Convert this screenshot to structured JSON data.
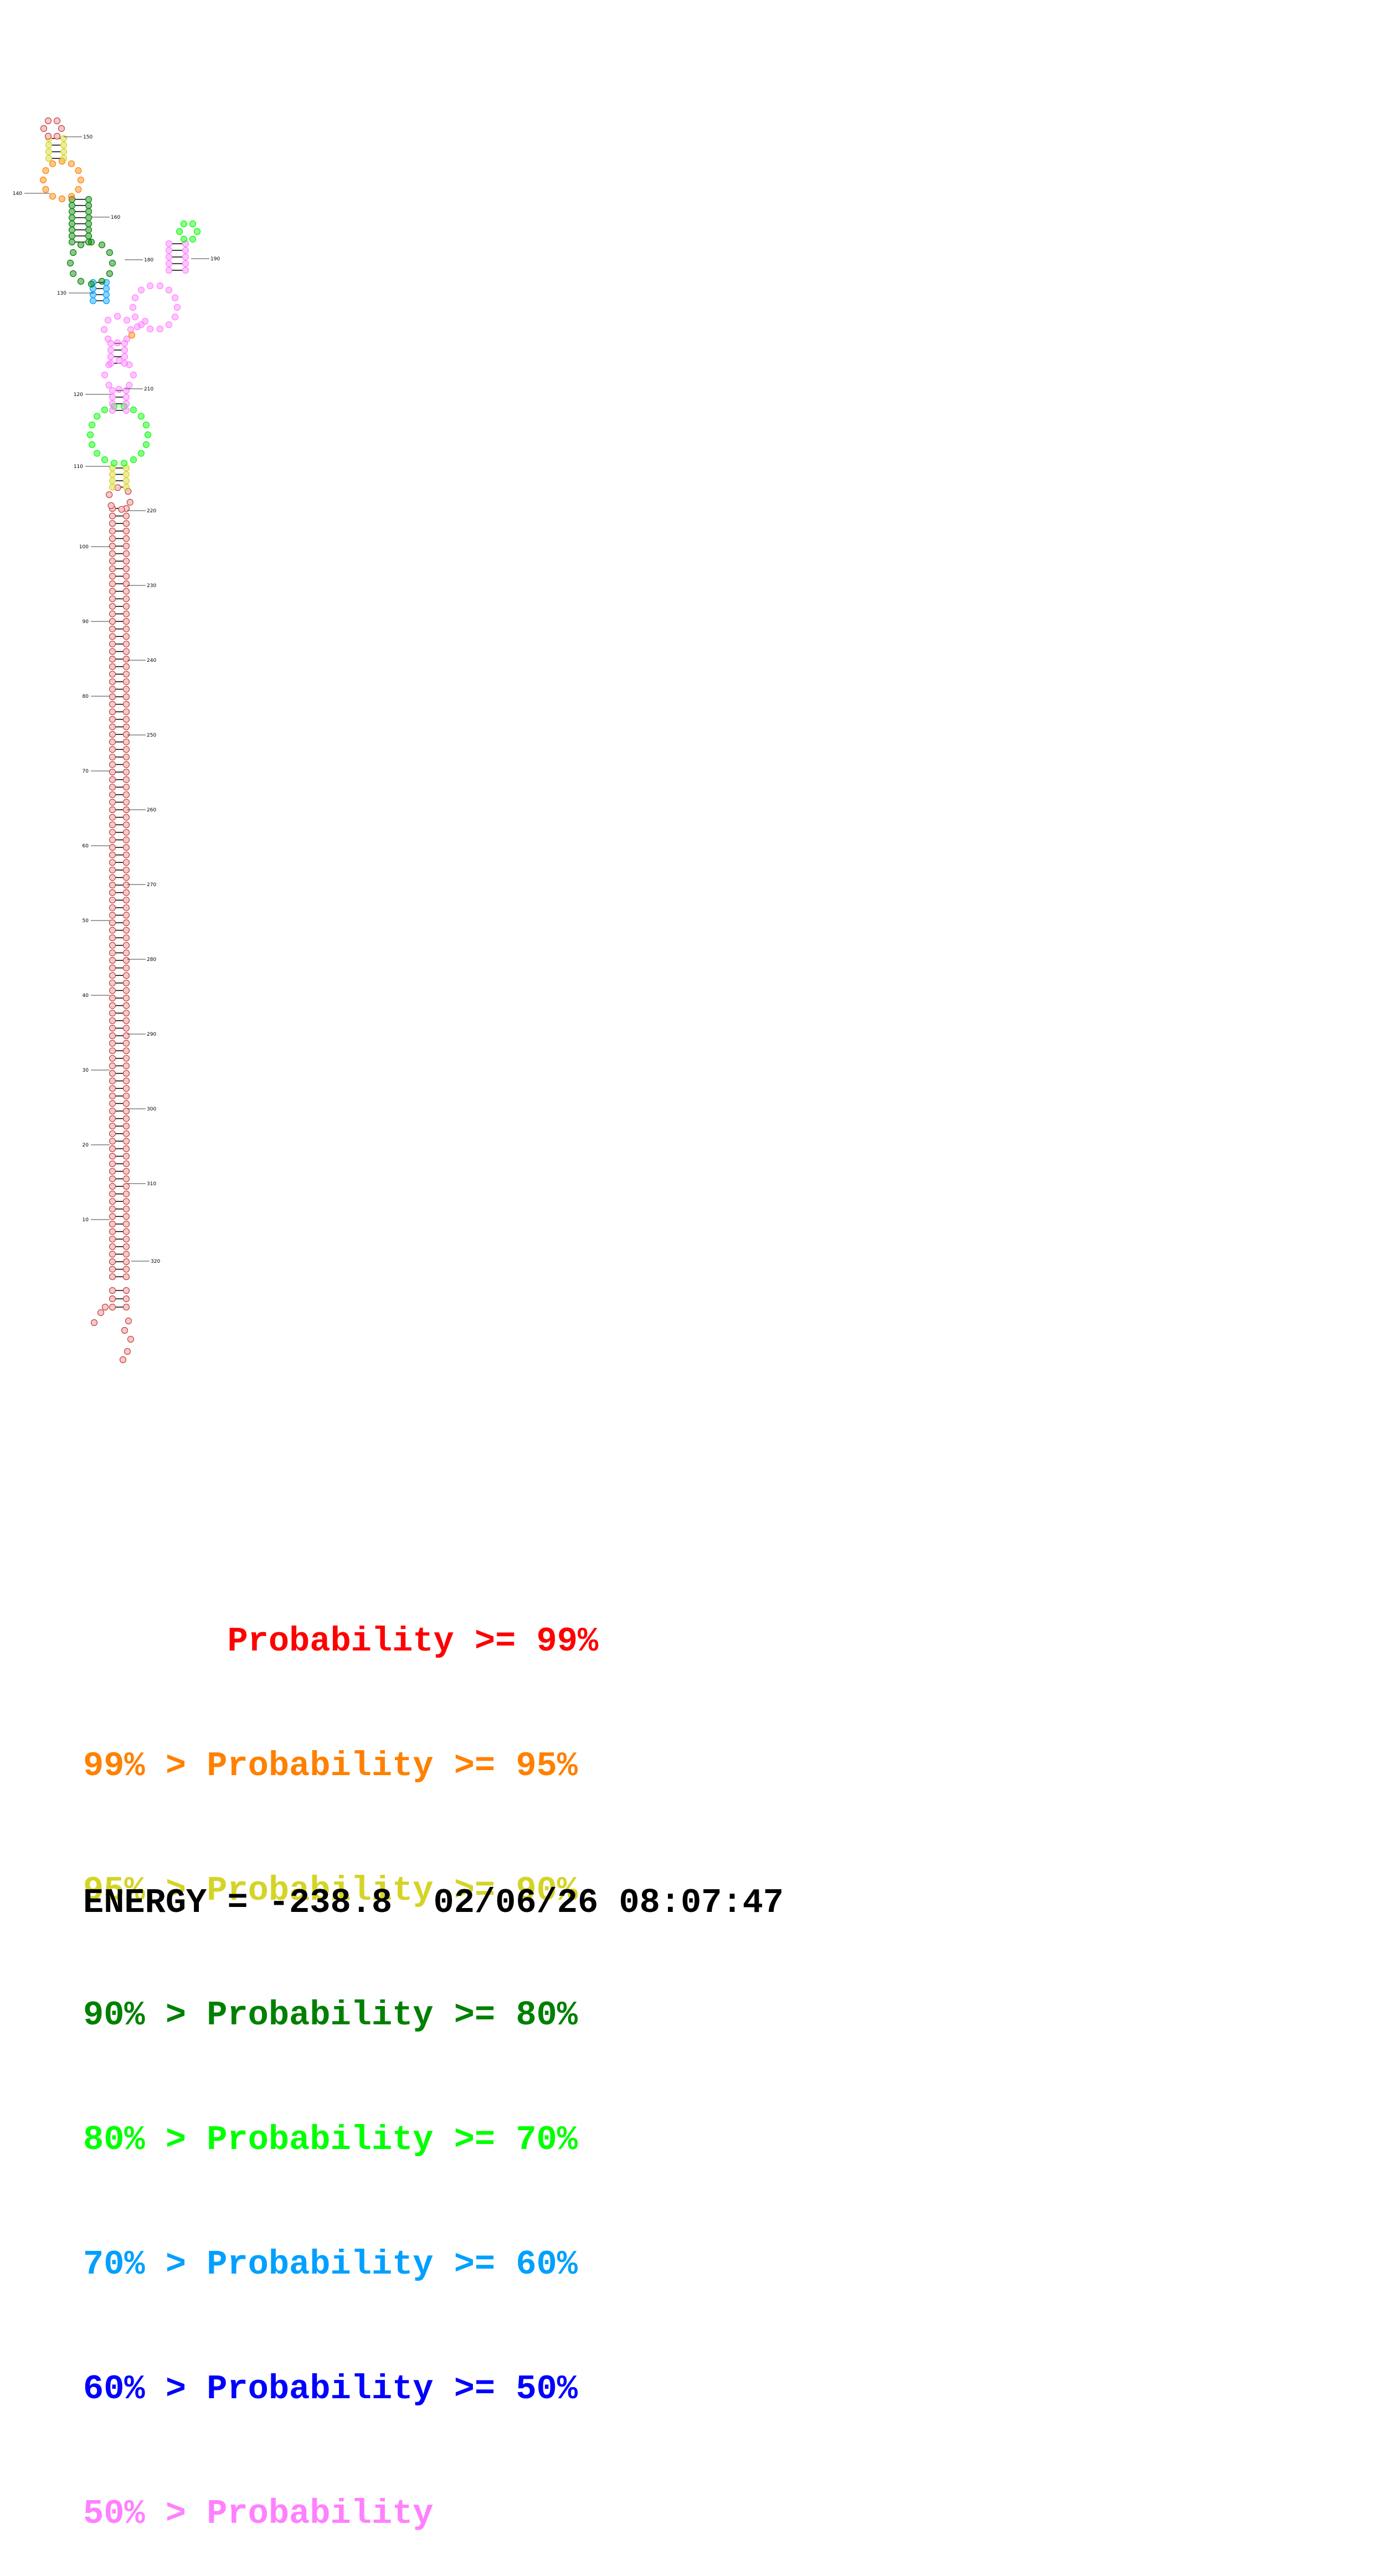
{
  "legend": {
    "lines": [
      {
        "text": "       Probability >= 99%",
        "color": "#ff0000"
      },
      {
        "text": "99% > Probability >= 95%",
        "color": "#ff8000"
      },
      {
        "text": "95% > Probability >= 90%",
        "color": "#d4d426"
      },
      {
        "text": "90% > Probability >= 80%",
        "color": "#008000"
      },
      {
        "text": "80% > Probability >= 70%",
        "color": "#00ff00"
      },
      {
        "text": "70% > Probability >= 60%",
        "color": "#00a0ff"
      },
      {
        "text": "60% > Probability >= 50%",
        "color": "#0000ff"
      },
      {
        "text": "50% > Probability",
        "color": "#ff80ff"
      }
    ]
  },
  "energy": {
    "text": "ENERGY = -238.8  02/06/26 08:07:47"
  },
  "structure": {
    "left_position_labels": [
      "10",
      "20",
      "30",
      "40",
      "50",
      "60",
      "70",
      "80",
      "90",
      "100",
      "110",
      "120",
      "130",
      "140"
    ],
    "right_position_labels": [
      "150",
      "160",
      "180",
      "190",
      "210",
      "220",
      "230",
      "240",
      "250",
      "260",
      "270",
      "280",
      "290",
      "300",
      "310",
      "320"
    ],
    "probability_colors": [
      "#ff0000",
      "#ff8000",
      "#d4d426",
      "#008000",
      "#00ff00",
      "#00a0ff",
      "#0000ff",
      "#ff80ff"
    ],
    "nucleotide_fill": "#f8c8c8",
    "nucleotide_stroke": "#c04040"
  }
}
